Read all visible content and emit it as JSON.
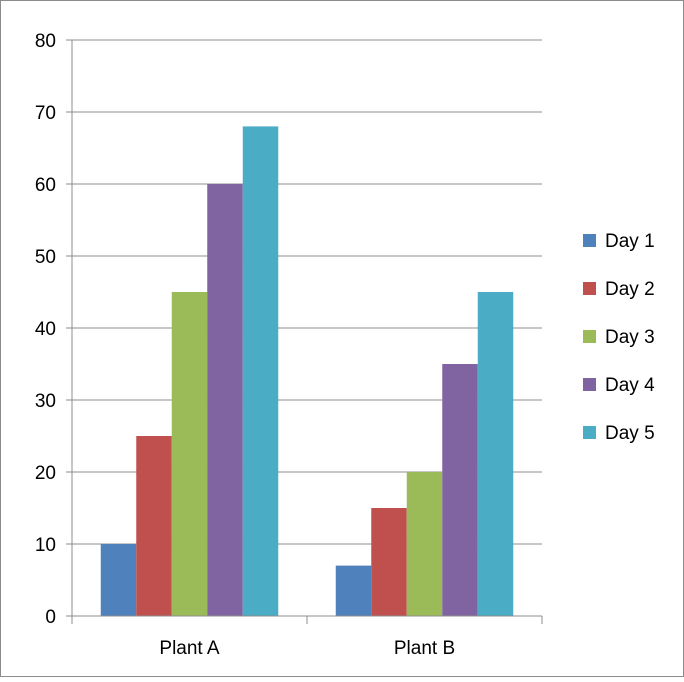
{
  "chart_data": {
    "type": "bar",
    "categories": [
      "Plant A",
      "Plant B"
    ],
    "series": [
      {
        "name": "Day 1",
        "values": [
          10,
          7
        ],
        "color": "#4F81BD"
      },
      {
        "name": "Day 2",
        "values": [
          25,
          15
        ],
        "color": "#C0504D"
      },
      {
        "name": "Day 3",
        "values": [
          45,
          20
        ],
        "color": "#9BBB59"
      },
      {
        "name": "Day 4",
        "values": [
          60,
          35
        ],
        "color": "#8064A2"
      },
      {
        "name": "Day 5",
        "values": [
          68,
          45
        ],
        "color": "#4BACC6"
      }
    ],
    "title": "",
    "xlabel": "",
    "ylabel": "",
    "ylim": [
      0,
      80
    ],
    "yticks": [
      "0",
      "10",
      "20",
      "30",
      "40",
      "50",
      "60",
      "70",
      "80"
    ],
    "grid": true,
    "legend_position": "right"
  }
}
